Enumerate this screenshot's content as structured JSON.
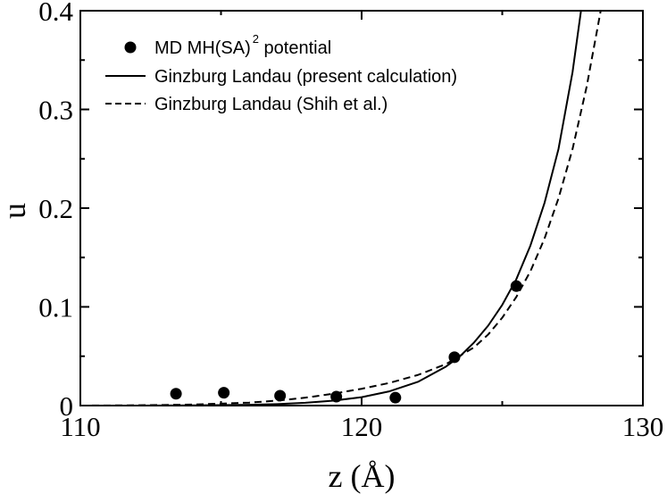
{
  "chart_data": {
    "type": "scatter",
    "title": "",
    "xlabel": "z (Å)",
    "ylabel": "u",
    "xlim": [
      110,
      130
    ],
    "ylim": [
      0,
      0.4
    ],
    "x_ticks": [
      110,
      120,
      130
    ],
    "x_tick_labels": [
      "110",
      "120",
      "130"
    ],
    "y_ticks": [
      0,
      0.1,
      0.2,
      0.3,
      0.4
    ],
    "y_tick_labels": [
      "0",
      "0.1",
      "0.2",
      "0.3",
      "0.4"
    ],
    "grid": false,
    "legend_position": "top-left",
    "series": [
      {
        "name": "MD MH(SA)",
        "name_superscript": "2",
        "name_suffix": " potential",
        "style": "markers",
        "x": [
          113.4,
          115.1,
          117.1,
          119.1,
          121.2,
          123.3,
          125.5
        ],
        "y": [
          0.012,
          0.013,
          0.01,
          0.009,
          0.008,
          0.049,
          0.121
        ]
      },
      {
        "name": "Ginzburg Landau (present calculation)",
        "style": "solid",
        "x": [
          110,
          112,
          114,
          116,
          117,
          118,
          119,
          120,
          121,
          122,
          123,
          123.5,
          124,
          124.5,
          125,
          125.5,
          126,
          126.5,
          127,
          127.5,
          127.8
        ],
        "y": [
          0.0,
          0.0,
          0.0002,
          0.0008,
          0.0015,
          0.0028,
          0.005,
          0.0085,
          0.0145,
          0.024,
          0.0395,
          0.05,
          0.064,
          0.081,
          0.102,
          0.128,
          0.162,
          0.205,
          0.26,
          0.338,
          0.4
        ]
      },
      {
        "name": "Ginzburg Landau (Shih et al.)",
        "style": "dashed",
        "x": [
          110,
          112,
          114,
          116,
          117,
          118,
          119,
          120,
          121,
          122,
          123,
          124,
          124.5,
          125,
          125.5,
          126,
          126.5,
          127,
          127.5,
          128,
          128.5
        ],
        "y": [
          0.0,
          0.0003,
          0.001,
          0.003,
          0.005,
          0.008,
          0.012,
          0.017,
          0.023,
          0.031,
          0.042,
          0.059,
          0.072,
          0.089,
          0.11,
          0.136,
          0.169,
          0.21,
          0.26,
          0.323,
          0.4
        ]
      }
    ]
  }
}
